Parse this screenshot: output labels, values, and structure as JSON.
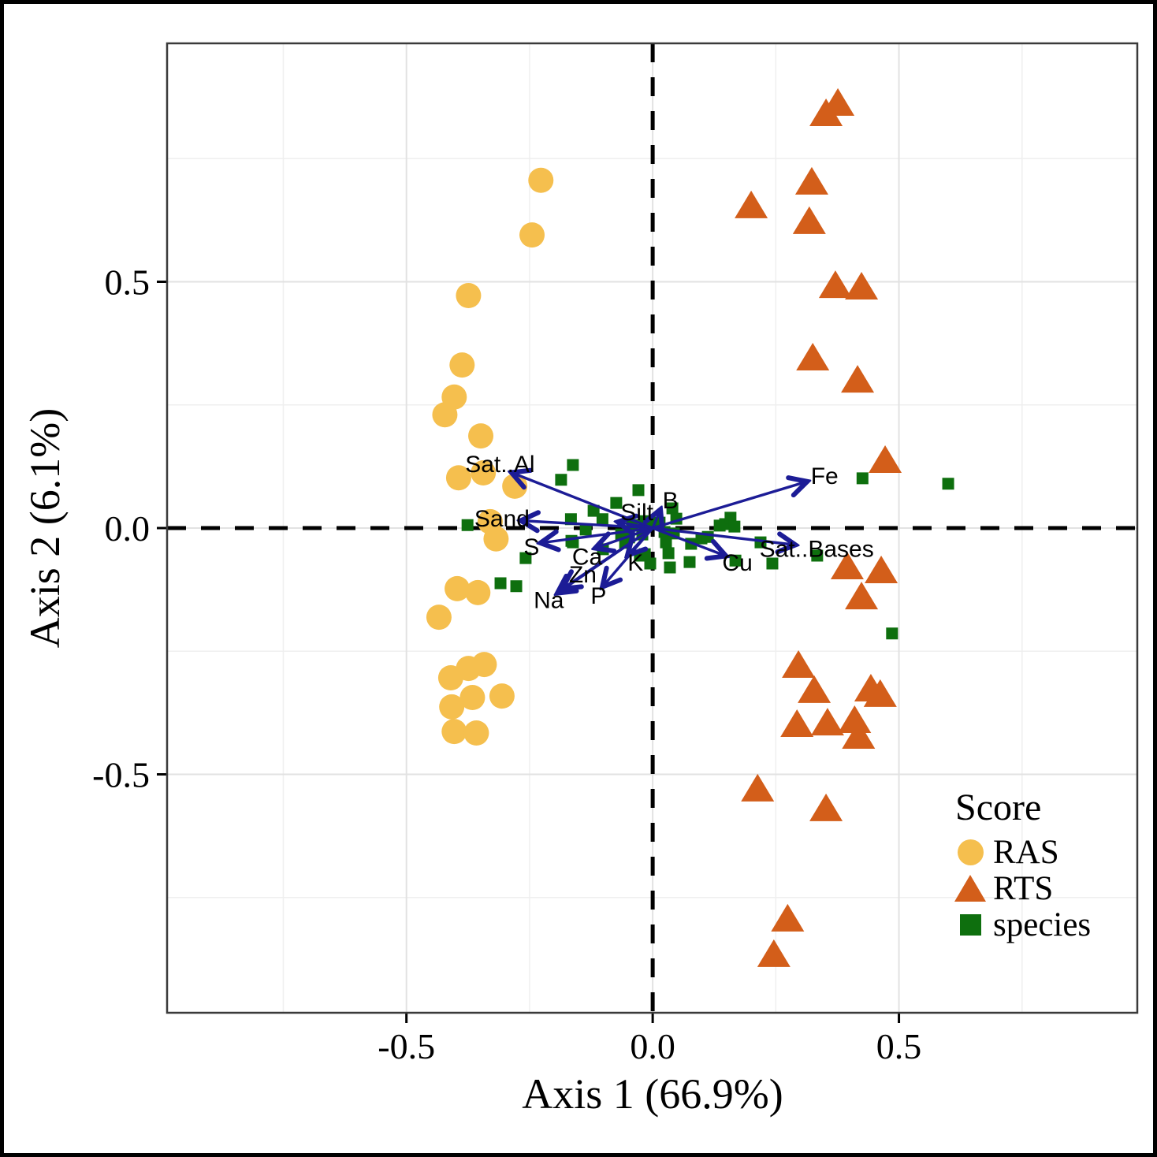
{
  "chart_data": {
    "type": "scatter",
    "subtype": "pca-rda-biplot",
    "xlabel": "Axis 1 (66.9%)",
    "ylabel": "Axis 2 (6.1%)",
    "xlim": [
      -0.986,
      0.984
    ],
    "ylim": [
      -0.984,
      0.984
    ],
    "grid_on": true,
    "grid": {
      "major": [
        -0.5,
        0,
        0.5
      ],
      "minor": [
        -0.75,
        -0.25,
        0.25,
        0.75
      ],
      "major_color": "#e2e2e2",
      "minor_color": "#efefef"
    },
    "zero_lines": {
      "color": "#000000",
      "style": "dashed"
    },
    "x_ticks": [
      {
        "value": -0.5,
        "label": "-0.5"
      },
      {
        "value": 0.0,
        "label": "0.0"
      },
      {
        "value": 0.5,
        "label": "0.5"
      }
    ],
    "y_ticks": [
      {
        "value": 0.5,
        "label": "0.5"
      },
      {
        "value": 0.0,
        "label": "0.0"
      },
      {
        "value": -0.5,
        "label": "-0.5"
      }
    ],
    "series": [
      {
        "name": "RAS",
        "marker": "circle",
        "color": "#F5BF4E",
        "points": [
          [
            -0.227,
            0.706
          ],
          [
            -0.245,
            0.595
          ],
          [
            -0.374,
            0.472
          ],
          [
            -0.387,
            0.331
          ],
          [
            -0.403,
            0.266
          ],
          [
            -0.422,
            0.23
          ],
          [
            -0.349,
            0.187
          ],
          [
            -0.394,
            0.102
          ],
          [
            -0.344,
            0.112
          ],
          [
            -0.28,
            0.085
          ],
          [
            -0.33,
            0.013
          ],
          [
            -0.318,
            -0.022
          ],
          [
            -0.397,
            -0.123
          ],
          [
            -0.355,
            -0.131
          ],
          [
            -0.434,
            -0.181
          ],
          [
            -0.342,
            -0.277
          ],
          [
            -0.374,
            -0.285
          ],
          [
            -0.41,
            -0.304
          ],
          [
            -0.366,
            -0.344
          ],
          [
            -0.306,
            -0.341
          ],
          [
            -0.408,
            -0.363
          ],
          [
            -0.403,
            -0.413
          ],
          [
            -0.358,
            -0.416
          ]
        ]
      },
      {
        "name": "RTS",
        "marker": "triangle",
        "color": "#D35E1A",
        "points": [
          [
            0.352,
            0.84
          ],
          [
            0.376,
            0.861
          ],
          [
            0.323,
            0.701
          ],
          [
            0.2,
            0.653
          ],
          [
            0.318,
            0.621
          ],
          [
            0.371,
            0.491
          ],
          [
            0.424,
            0.488
          ],
          [
            0.325,
            0.344
          ],
          [
            0.416,
            0.299
          ],
          [
            0.472,
            0.136
          ],
          [
            0.395,
            -0.08
          ],
          [
            0.464,
            -0.088
          ],
          [
            0.424,
            -0.141
          ],
          [
            0.296,
            -0.28
          ],
          [
            0.328,
            -0.331
          ],
          [
            0.443,
            -0.328
          ],
          [
            0.462,
            -0.339
          ],
          [
            0.293,
            -0.4
          ],
          [
            0.355,
            -0.397
          ],
          [
            0.41,
            -0.392
          ],
          [
            0.418,
            -0.424
          ],
          [
            0.213,
            -0.531
          ],
          [
            0.352,
            -0.571
          ],
          [
            0.274,
            -0.795
          ],
          [
            0.246,
            -0.867
          ]
        ]
      },
      {
        "name": "species",
        "marker": "square",
        "color": "#0E6F0E",
        "points": [
          [
            -0.162,
            0.128
          ],
          [
            -0.186,
            0.098
          ],
          [
            -0.029,
            0.077
          ],
          [
            -0.074,
            0.051
          ],
          [
            -0.12,
            0.035
          ],
          [
            -0.102,
            0.018
          ],
          [
            -0.166,
            0.018
          ],
          [
            -0.136,
            -0.003
          ],
          [
            -0.165,
            -0.026
          ],
          [
            -0.376,
            0.006
          ],
          [
            -0.258,
            -0.061
          ],
          [
            -0.162,
            -0.029
          ],
          [
            -0.101,
            -0.043
          ],
          [
            -0.064,
            -0.013
          ],
          [
            -0.309,
            -0.112
          ],
          [
            -0.277,
            -0.118
          ],
          [
            -0.042,
            0.006
          ],
          [
            -0.018,
            0.014
          ],
          [
            -0.048,
            -0.019
          ],
          [
            -0.021,
            -0.013
          ],
          [
            -0.005,
            0.008
          ],
          [
            0.014,
            0.011
          ],
          [
            -0.056,
            -0.03
          ],
          [
            -0.026,
            -0.056
          ],
          [
            -0.016,
            -0.053
          ],
          [
            -0.005,
            -0.072
          ],
          [
            0.04,
            0.04
          ],
          [
            0.048,
            0.019
          ],
          [
            0.024,
            -0.008
          ],
          [
            0.043,
            -0.011
          ],
          [
            0.027,
            -0.029
          ],
          [
            0.032,
            -0.051
          ],
          [
            0.078,
            -0.032
          ],
          [
            0.099,
            -0.021
          ],
          [
            0.112,
            -0.018
          ],
          [
            0.136,
            0.005
          ],
          [
            0.147,
            0.008
          ],
          [
            0.158,
            0.021
          ],
          [
            0.166,
            0.003
          ],
          [
            0.075,
            -0.069
          ],
          [
            0.035,
            -0.08
          ],
          [
            0.168,
            -0.066
          ],
          [
            0.219,
            -0.029
          ],
          [
            0.243,
            -0.072
          ],
          [
            0.334,
            -0.056
          ],
          [
            0.426,
            0.101
          ],
          [
            0.6,
            0.09
          ],
          [
            0.486,
            -0.214
          ]
        ]
      }
    ],
    "vectors": {
      "color": "#1C1C96",
      "origin": [
        0,
        0
      ],
      "items": [
        {
          "label": "Sat..Al",
          "x": -0.285,
          "y": 0.112,
          "label_x": -0.31,
          "label_y": 0.126
        },
        {
          "label": "Sand",
          "x": -0.266,
          "y": 0.015,
          "label_x": -0.306,
          "label_y": 0.016
        },
        {
          "label": "S",
          "x": -0.226,
          "y": -0.03,
          "label_x": -0.246,
          "label_y": -0.042
        },
        {
          "label": "Ca",
          "x": -0.115,
          "y": -0.04,
          "label_x": -0.133,
          "label_y": -0.062
        },
        {
          "label": "Zn",
          "x": -0.182,
          "y": -0.122,
          "label_x": -0.142,
          "label_y": -0.098
        },
        {
          "label": "Na",
          "x": -0.192,
          "y": -0.131,
          "label_x": -0.211,
          "label_y": -0.15
        },
        {
          "label": "P",
          "x": -0.101,
          "y": -0.118,
          "label_x": -0.11,
          "label_y": -0.141
        },
        {
          "label": "K",
          "x": -0.05,
          "y": -0.054,
          "label_x": -0.035,
          "label_y": -0.074
        },
        {
          "label": "Silt",
          "x": -0.069,
          "y": 0.012,
          "label_x": -0.032,
          "label_y": 0.029
        },
        {
          "label": "B",
          "x": 0.015,
          "y": 0.036,
          "label_x": 0.036,
          "label_y": 0.053
        },
        {
          "label": "Fe",
          "x": 0.312,
          "y": 0.094,
          "label_x": 0.349,
          "label_y": 0.102
        },
        {
          "label": "Sat..Bases",
          "x": 0.288,
          "y": -0.034,
          "label_x": 0.333,
          "label_y": -0.046
        },
        {
          "label": "Cu",
          "x": 0.147,
          "y": -0.056,
          "label_x": 0.172,
          "label_y": -0.074
        }
      ]
    },
    "legend": {
      "title": "Score",
      "position": "inside-bottom-right",
      "items": [
        {
          "label": "RAS",
          "marker": "circle"
        },
        {
          "label": "RTS",
          "marker": "triangle"
        },
        {
          "label": "species",
          "marker": "square"
        }
      ]
    }
  }
}
